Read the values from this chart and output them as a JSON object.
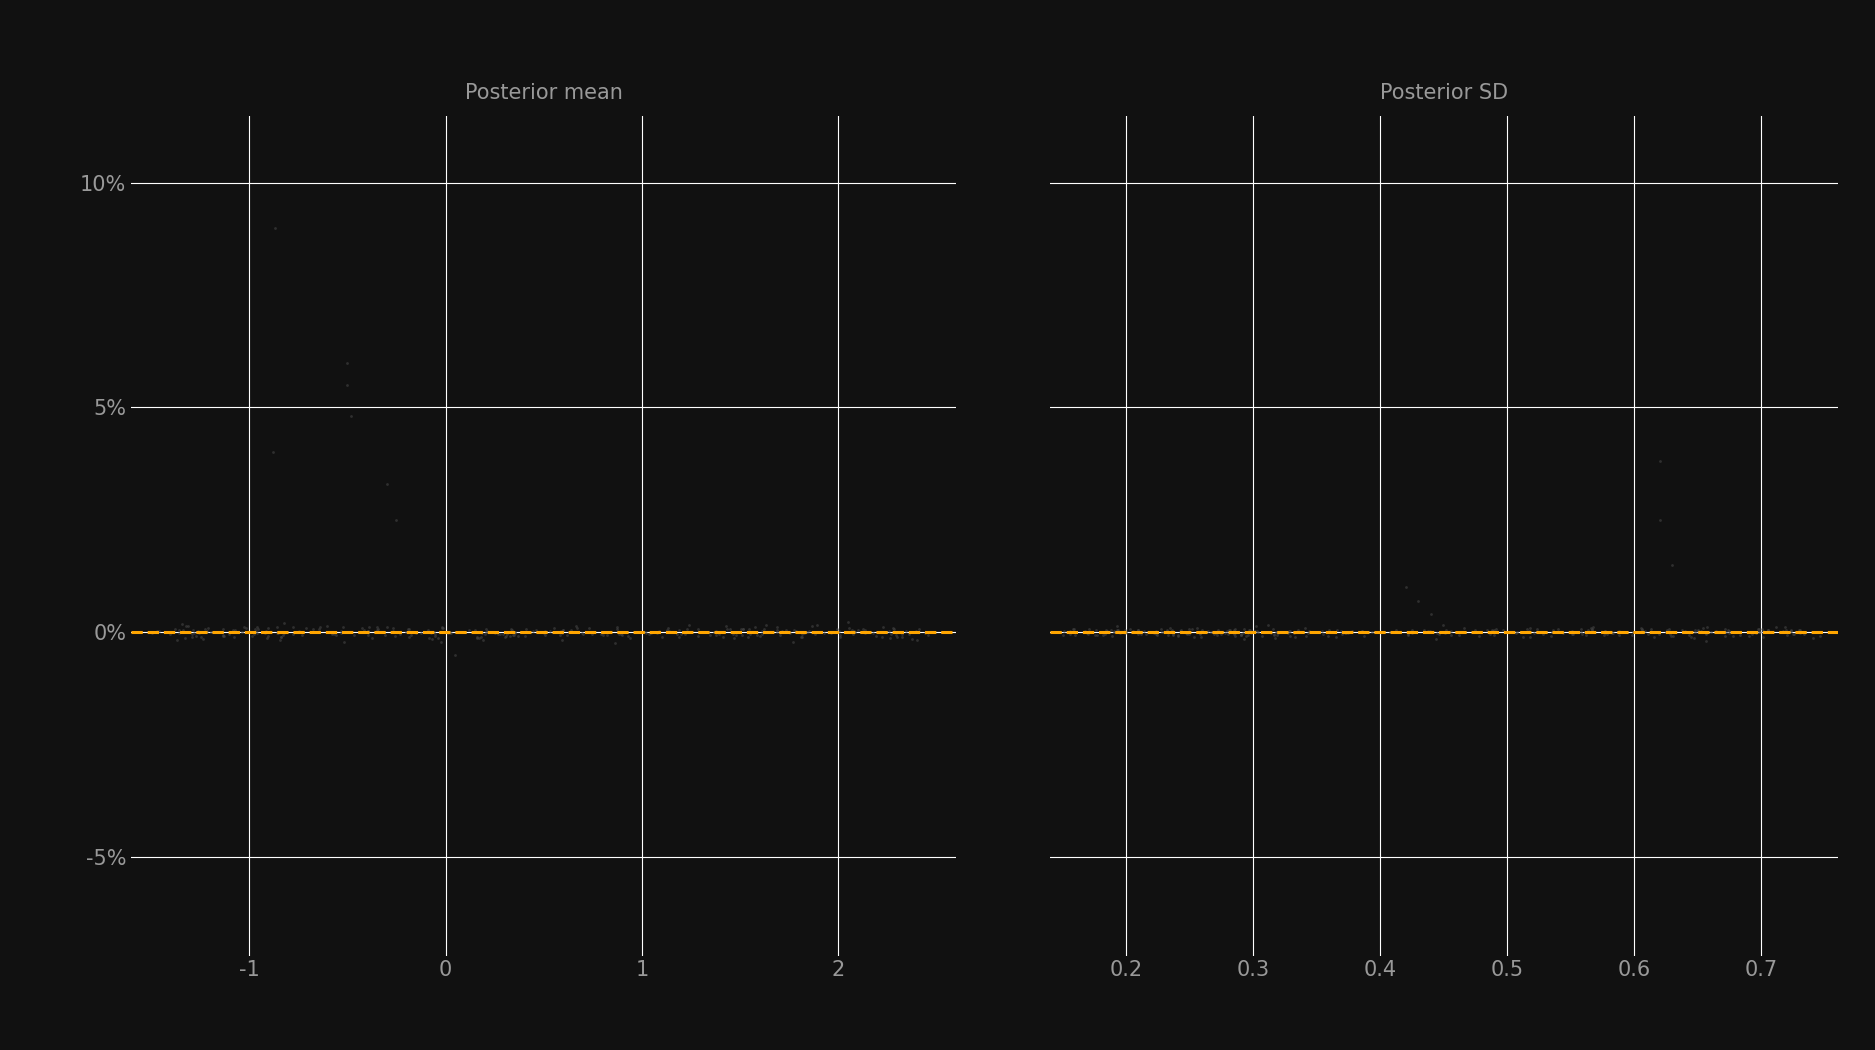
{
  "left_title": "Posterior mean",
  "right_title": "Posterior SD",
  "background_color": "#111111",
  "panel_background": "#111111",
  "grid_color": "#ffffff",
  "title_color": "#999999",
  "tick_color": "#999999",
  "dashed_line_color": "#FFA500",
  "dashed_line_y": 0.0,
  "left_xlim": [
    -1.6,
    2.6
  ],
  "left_xticks": [
    -1,
    0,
    1,
    2
  ],
  "right_xlim": [
    0.14,
    0.76
  ],
  "right_xticks": [
    0.2,
    0.3,
    0.4,
    0.5,
    0.6,
    0.7
  ],
  "ylim": [
    -0.072,
    0.115
  ],
  "yticks": [
    -0.05,
    0.0,
    0.05,
    0.1
  ],
  "yticklabels": [
    "-5%",
    "0%",
    "5%",
    "10%"
  ],
  "title_fontsize": 15,
  "tick_fontsize": 15,
  "figsize": [
    18.75,
    10.5
  ],
  "dpi": 100,
  "scatter_color": "#444444",
  "scatter_size": 4,
  "left_scatter_x_main": [],
  "left_scatter_y_main": [],
  "right_scatter_x_main": [],
  "right_scatter_y_main": []
}
